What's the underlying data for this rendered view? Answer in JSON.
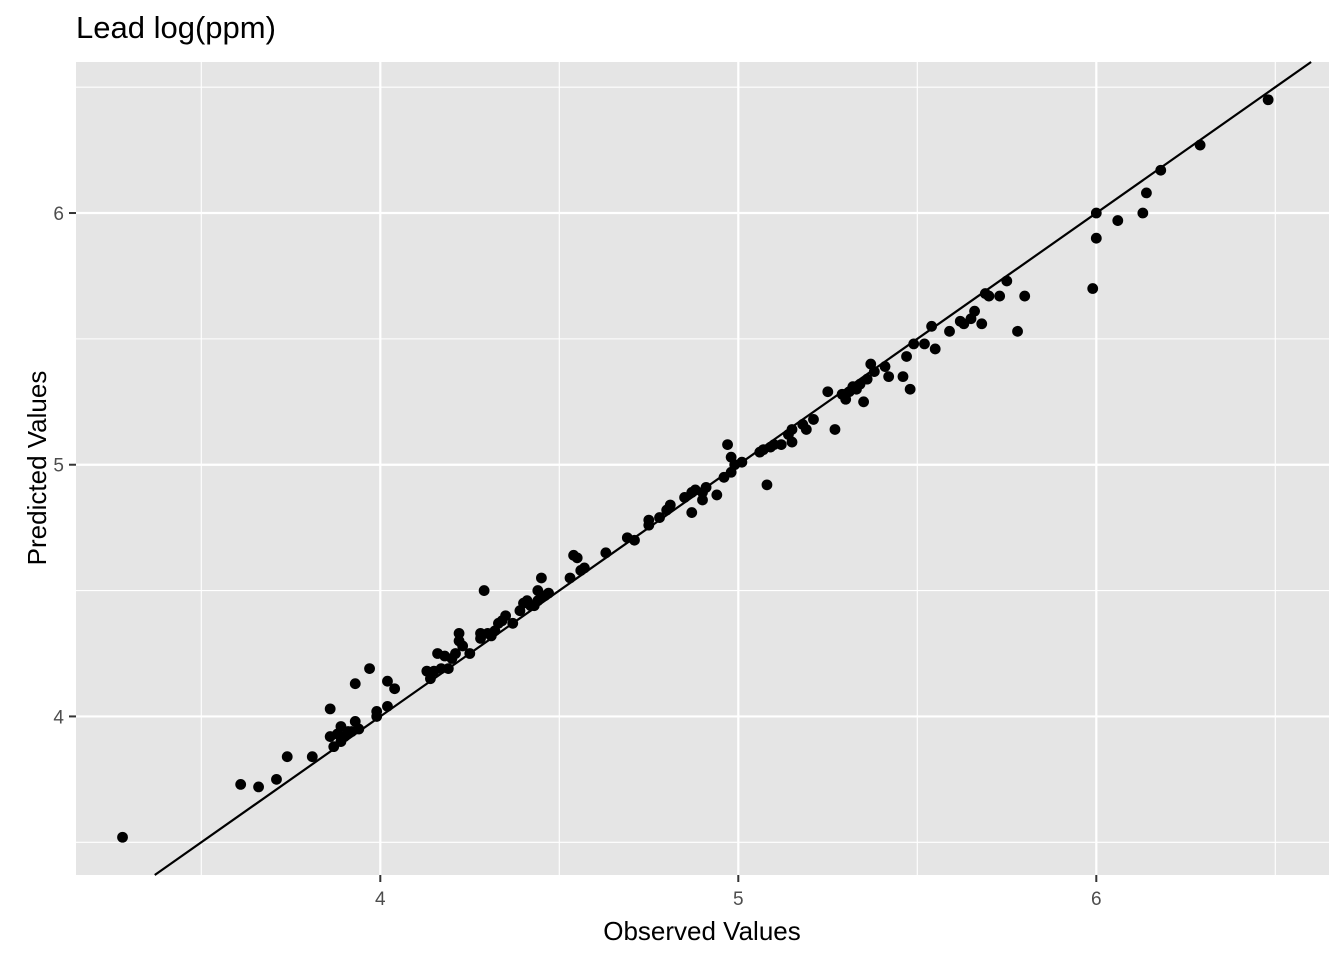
{
  "chart_data": {
    "type": "scatter",
    "title": "Lead log(ppm)",
    "xlabel": "Observed Values",
    "ylabel": "Predicted Values",
    "xlim": [
      3.15,
      6.65
    ],
    "ylim": [
      3.37,
      6.6
    ],
    "x_ticks": [
      4,
      5,
      6
    ],
    "y_ticks": [
      4,
      5,
      6
    ],
    "x_tick_labels": [
      "4",
      "5",
      "6"
    ],
    "y_tick_labels": [
      "4",
      "5",
      "6"
    ],
    "grid": true,
    "reference_line": {
      "slope": 1,
      "intercept": 0
    },
    "colors": {
      "panel": "#e5e5e5",
      "grid": "#ffffff",
      "points": "#000000",
      "line": "#000000"
    },
    "points": [
      [
        3.28,
        3.52
      ],
      [
        3.61,
        3.73
      ],
      [
        3.66,
        3.72
      ],
      [
        3.71,
        3.75
      ],
      [
        3.74,
        3.84
      ],
      [
        3.81,
        3.84
      ],
      [
        3.86,
        4.03
      ],
      [
        3.86,
        3.92
      ],
      [
        3.87,
        3.88
      ],
      [
        3.88,
        3.93
      ],
      [
        3.89,
        3.96
      ],
      [
        3.89,
        3.9
      ],
      [
        3.9,
        3.92
      ],
      [
        3.91,
        3.94
      ],
      [
        3.92,
        3.94
      ],
      [
        3.93,
        4.13
      ],
      [
        3.93,
        3.98
      ],
      [
        3.94,
        3.95
      ],
      [
        3.97,
        4.19
      ],
      [
        3.99,
        4.02
      ],
      [
        3.99,
        4.0
      ],
      [
        4.02,
        4.14
      ],
      [
        4.02,
        4.04
      ],
      [
        4.04,
        4.11
      ],
      [
        4.13,
        4.18
      ],
      [
        4.14,
        4.15
      ],
      [
        4.15,
        4.18
      ],
      [
        4.16,
        4.25
      ],
      [
        4.17,
        4.19
      ],
      [
        4.18,
        4.24
      ],
      [
        4.19,
        4.19
      ],
      [
        4.2,
        4.23
      ],
      [
        4.21,
        4.25
      ],
      [
        4.22,
        4.33
      ],
      [
        4.22,
        4.3
      ],
      [
        4.23,
        4.28
      ],
      [
        4.25,
        4.25
      ],
      [
        4.28,
        4.31
      ],
      [
        4.28,
        4.33
      ],
      [
        4.29,
        4.5
      ],
      [
        4.3,
        4.33
      ],
      [
        4.31,
        4.32
      ],
      [
        4.32,
        4.34
      ],
      [
        4.33,
        4.37
      ],
      [
        4.34,
        4.38
      ],
      [
        4.35,
        4.4
      ],
      [
        4.37,
        4.37
      ],
      [
        4.39,
        4.42
      ],
      [
        4.4,
        4.45
      ],
      [
        4.41,
        4.46
      ],
      [
        4.42,
        4.44
      ],
      [
        4.43,
        4.44
      ],
      [
        4.44,
        4.46
      ],
      [
        4.44,
        4.5
      ],
      [
        4.45,
        4.55
      ],
      [
        4.46,
        4.48
      ],
      [
        4.47,
        4.49
      ],
      [
        4.53,
        4.55
      ],
      [
        4.54,
        4.64
      ],
      [
        4.55,
        4.63
      ],
      [
        4.56,
        4.58
      ],
      [
        4.57,
        4.59
      ],
      [
        4.63,
        4.65
      ],
      [
        4.69,
        4.71
      ],
      [
        4.71,
        4.7
      ],
      [
        4.75,
        4.76
      ],
      [
        4.75,
        4.78
      ],
      [
        4.78,
        4.79
      ],
      [
        4.8,
        4.82
      ],
      [
        4.81,
        4.84
      ],
      [
        4.85,
        4.87
      ],
      [
        4.87,
        4.81
      ],
      [
        4.87,
        4.89
      ],
      [
        4.88,
        4.9
      ],
      [
        4.9,
        4.86
      ],
      [
        4.9,
        4.89
      ],
      [
        4.91,
        4.91
      ],
      [
        4.94,
        4.88
      ],
      [
        4.96,
        4.95
      ],
      [
        4.97,
        5.08
      ],
      [
        4.98,
        5.03
      ],
      [
        4.98,
        4.97
      ],
      [
        4.99,
        5.0
      ],
      [
        5.01,
        5.01
      ],
      [
        5.06,
        5.05
      ],
      [
        5.07,
        5.06
      ],
      [
        5.08,
        4.92
      ],
      [
        5.09,
        5.07
      ],
      [
        5.1,
        5.08
      ],
      [
        5.12,
        5.08
      ],
      [
        5.14,
        5.12
      ],
      [
        5.15,
        5.09
      ],
      [
        5.15,
        5.14
      ],
      [
        5.18,
        5.16
      ],
      [
        5.19,
        5.14
      ],
      [
        5.21,
        5.18
      ],
      [
        5.25,
        5.29
      ],
      [
        5.27,
        5.14
      ],
      [
        5.29,
        5.28
      ],
      [
        5.3,
        5.26
      ],
      [
        5.31,
        5.29
      ],
      [
        5.32,
        5.31
      ],
      [
        5.33,
        5.3
      ],
      [
        5.34,
        5.32
      ],
      [
        5.35,
        5.25
      ],
      [
        5.36,
        5.34
      ],
      [
        5.37,
        5.4
      ],
      [
        5.38,
        5.37
      ],
      [
        5.41,
        5.39
      ],
      [
        5.42,
        5.35
      ],
      [
        5.46,
        5.35
      ],
      [
        5.47,
        5.43
      ],
      [
        5.48,
        5.3
      ],
      [
        5.49,
        5.48
      ],
      [
        5.52,
        5.48
      ],
      [
        5.54,
        5.55
      ],
      [
        5.55,
        5.46
      ],
      [
        5.59,
        5.53
      ],
      [
        5.62,
        5.57
      ],
      [
        5.63,
        5.56
      ],
      [
        5.65,
        5.58
      ],
      [
        5.66,
        5.61
      ],
      [
        5.68,
        5.56
      ],
      [
        5.69,
        5.68
      ],
      [
        5.7,
        5.67
      ],
      [
        5.73,
        5.67
      ],
      [
        5.75,
        5.73
      ],
      [
        5.78,
        5.53
      ],
      [
        5.8,
        5.67
      ],
      [
        5.99,
        5.7
      ],
      [
        6.0,
        6.0
      ],
      [
        6.0,
        5.9
      ],
      [
        6.06,
        5.97
      ],
      [
        6.13,
        6.0
      ],
      [
        6.14,
        6.08
      ],
      [
        6.18,
        6.17
      ],
      [
        6.29,
        6.27
      ],
      [
        6.48,
        6.45
      ]
    ]
  }
}
